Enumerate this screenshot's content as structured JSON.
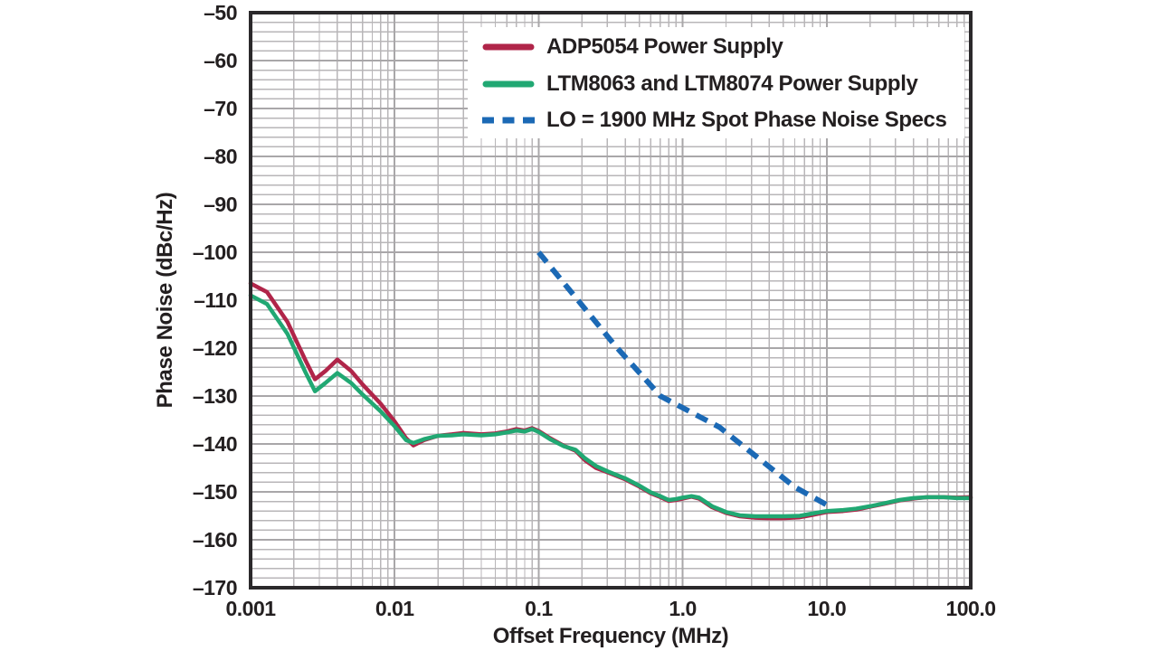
{
  "chart_data": {
    "type": "line",
    "title": "",
    "xlabel": "Offset Frequency (MHz)",
    "ylabel": "Phase Noise (dBc/Hz)",
    "x_scale": "log",
    "xlim": [
      0.001,
      100
    ],
    "ylim": [
      -170,
      -50
    ],
    "y_major_step": 10,
    "y_minor_step": 2,
    "grid": "major-and-minor",
    "legend_position": "top-right-inside",
    "frame_color": "#2b292b",
    "grid_major_color": "#a9a7a9",
    "grid_minor_color": "#b8b6b8",
    "x_ticks": [
      {
        "value": 0.001,
        "label": "0.001"
      },
      {
        "value": 0.01,
        "label": "0.01"
      },
      {
        "value": 0.1,
        "label": "0.1"
      },
      {
        "value": 1,
        "label": "1.0"
      },
      {
        "value": 10,
        "label": "10.0"
      },
      {
        "value": 100,
        "label": "100.0"
      }
    ],
    "y_ticks": [
      {
        "value": -50,
        "label": "–50"
      },
      {
        "value": -60,
        "label": "–60"
      },
      {
        "value": -70,
        "label": "–70"
      },
      {
        "value": -80,
        "label": "–80"
      },
      {
        "value": -90,
        "label": "–90"
      },
      {
        "value": -100,
        "label": "–100"
      },
      {
        "value": -110,
        "label": "–110"
      },
      {
        "value": -120,
        "label": "–120"
      },
      {
        "value": -130,
        "label": "–130"
      },
      {
        "value": -140,
        "label": "–140"
      },
      {
        "value": -150,
        "label": "–150"
      },
      {
        "value": -160,
        "label": "–160"
      },
      {
        "value": -170,
        "label": "–170"
      }
    ],
    "series": [
      {
        "name": "ADP5054 Power Supply",
        "color": "#b02549",
        "style": "solid",
        "line_width": 4.5,
        "x": [
          0.001,
          0.0013,
          0.0018,
          0.0024,
          0.0028,
          0.0033,
          0.004,
          0.005,
          0.006,
          0.008,
          0.01,
          0.012,
          0.0135,
          0.016,
          0.02,
          0.025,
          0.03,
          0.04,
          0.05,
          0.06,
          0.07,
          0.08,
          0.09,
          0.1,
          0.12,
          0.15,
          0.18,
          0.21,
          0.25,
          0.3,
          0.4,
          0.5,
          0.6,
          0.7,
          0.8,
          0.9,
          1.0,
          1.15,
          1.3,
          1.6,
          2.0,
          2.5,
          3.2,
          4.0,
          5.0,
          6.5,
          8.0,
          10,
          13,
          16,
          20,
          25,
          32,
          40,
          50,
          65,
          80,
          100
        ],
        "y": [
          -106.5,
          -108.3,
          -114.5,
          -122.5,
          -126.5,
          -124.8,
          -122.4,
          -124.8,
          -127.6,
          -131.6,
          -135.3,
          -138.8,
          -140.3,
          -139.2,
          -138.3,
          -138.0,
          -137.7,
          -138.0,
          -137.8,
          -137.4,
          -136.9,
          -137.2,
          -136.7,
          -137.3,
          -138.8,
          -140.4,
          -141.4,
          -143.4,
          -145.0,
          -145.9,
          -147.4,
          -148.9,
          -150.3,
          -151.1,
          -151.9,
          -151.7,
          -151.4,
          -151.0,
          -151.4,
          -153.2,
          -154.4,
          -155.1,
          -155.4,
          -155.5,
          -155.5,
          -155.3,
          -154.8,
          -154.2,
          -154.0,
          -153.7,
          -153.1,
          -152.5,
          -151.8,
          -151.4,
          -151.1,
          -151.1,
          -151.2,
          -151.1
        ]
      },
      {
        "name": "LTM8063 and LTM8074 Power Supply",
        "color": "#21a873",
        "style": "solid",
        "line_width": 4.5,
        "x": [
          0.001,
          0.0013,
          0.0018,
          0.0024,
          0.0028,
          0.0033,
          0.004,
          0.005,
          0.006,
          0.008,
          0.01,
          0.012,
          0.0135,
          0.016,
          0.02,
          0.025,
          0.03,
          0.04,
          0.05,
          0.06,
          0.07,
          0.08,
          0.09,
          0.1,
          0.12,
          0.15,
          0.18,
          0.21,
          0.25,
          0.3,
          0.4,
          0.5,
          0.6,
          0.7,
          0.8,
          0.9,
          1.0,
          1.15,
          1.3,
          1.6,
          2.0,
          2.5,
          3.2,
          4.0,
          5.0,
          6.5,
          8.0,
          10,
          13,
          16,
          20,
          25,
          32,
          40,
          50,
          65,
          80,
          100
        ],
        "y": [
          -109.0,
          -110.8,
          -117.0,
          -125.0,
          -129.0,
          -127.3,
          -125.2,
          -127.3,
          -129.7,
          -133.2,
          -136.3,
          -139.2,
          -139.8,
          -139.0,
          -138.3,
          -138.2,
          -138.0,
          -138.2,
          -138.0,
          -137.6,
          -137.2,
          -137.4,
          -136.9,
          -137.5,
          -139.0,
          -140.5,
          -141.2,
          -143.0,
          -144.6,
          -145.7,
          -147.2,
          -148.7,
          -150.1,
          -150.9,
          -151.7,
          -151.5,
          -151.2,
          -150.9,
          -151.2,
          -153.0,
          -154.2,
          -154.9,
          -155.1,
          -155.1,
          -155.1,
          -155.0,
          -154.5,
          -154.0,
          -153.8,
          -153.5,
          -153.0,
          -152.4,
          -151.7,
          -151.3,
          -151.1,
          -151.1,
          -151.3,
          -151.3
        ]
      },
      {
        "name": "LO = 1900 MHz Spot Phase Noise Specs",
        "color": "#1b69b5",
        "style": "dashed",
        "line_width": 6,
        "x": [
          0.1,
          0.34,
          0.7,
          1.8,
          6.0,
          10.0
        ],
        "y": [
          -100,
          -119.5,
          -130,
          -136.5,
          -149,
          -152.7
        ]
      }
    ]
  }
}
